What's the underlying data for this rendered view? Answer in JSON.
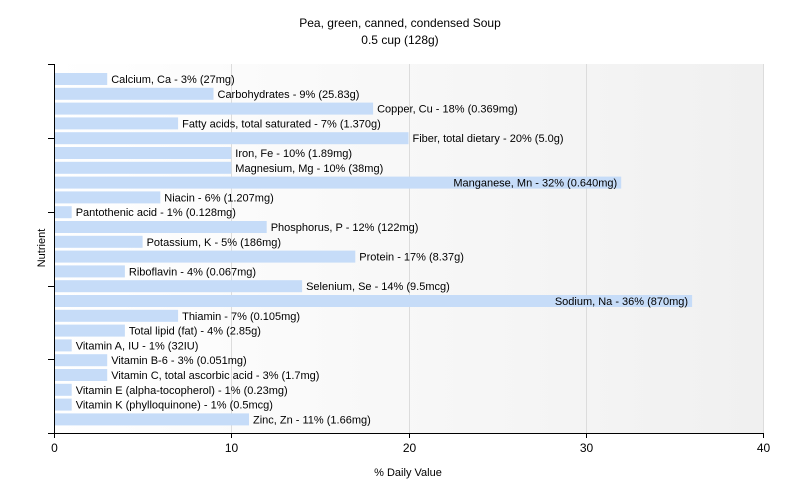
{
  "chart_data": {
    "type": "bar",
    "orientation": "horizontal",
    "title": "Pea, green, canned, condensed Soup",
    "subtitle": "0.5 cup (128g)",
    "xlabel": "% Daily Value",
    "ylabel": "Nutrient",
    "xlim": [
      0,
      40
    ],
    "xticks": [
      0,
      10,
      20,
      30,
      40
    ],
    "grid": "vertical",
    "bar_color": "#c6dcf8",
    "categories": [
      "Calcium, Ca",
      "Carbohydrates",
      "Copper, Cu",
      "Fatty acids, total saturated",
      "Fiber, total dietary",
      "Iron, Fe",
      "Magnesium, Mg",
      "Manganese, Mn",
      "Niacin",
      "Pantothenic acid",
      "Phosphorus, P",
      "Potassium, K",
      "Protein",
      "Riboflavin",
      "Selenium, Se",
      "Sodium, Na",
      "Thiamin",
      "Total lipid (fat)",
      "Vitamin A, IU",
      "Vitamin B-6",
      "Vitamin C, total ascorbic acid",
      "Vitamin E (alpha-tocopherol)",
      "Vitamin K (phylloquinone)",
      "Zinc, Zn"
    ],
    "values": [
      3,
      9,
      18,
      7,
      20,
      10,
      10,
      32,
      6,
      1,
      12,
      5,
      17,
      4,
      14,
      36,
      7,
      4,
      1,
      3,
      3,
      1,
      1,
      11
    ],
    "labels": [
      "Calcium, Ca - 3% (27mg)",
      "Carbohydrates - 9% (25.83g)",
      "Copper, Cu - 18% (0.369mg)",
      "Fatty acids, total saturated - 7% (1.370g)",
      "Fiber, total dietary - 20% (5.0g)",
      "Iron, Fe - 10% (1.89mg)",
      "Magnesium, Mg - 10% (38mg)",
      "Manganese, Mn - 32% (0.640mg)",
      "Niacin - 6% (1.207mg)",
      "Pantothenic acid - 1% (0.128mg)",
      "Phosphorus, P - 12% (122mg)",
      "Potassium, K - 5% (186mg)",
      "Protein - 17% (8.37g)",
      "Riboflavin - 4% (0.067mg)",
      "Selenium, Se - 14% (9.5mcg)",
      "Sodium, Na - 36% (870mg)",
      "Thiamin - 7% (0.105mg)",
      "Total lipid (fat) - 4% (2.85g)",
      "Vitamin A, IU - 1% (32IU)",
      "Vitamin B-6 - 3% (0.051mg)",
      "Vitamin C, total ascorbic acid - 3% (1.7mg)",
      "Vitamin E (alpha-tocopherol) - 1% (0.23mg)",
      "Vitamin K (phylloquinone) - 1% (0.5mcg)",
      "Zinc, Zn - 11% (1.66mg)"
    ]
  }
}
